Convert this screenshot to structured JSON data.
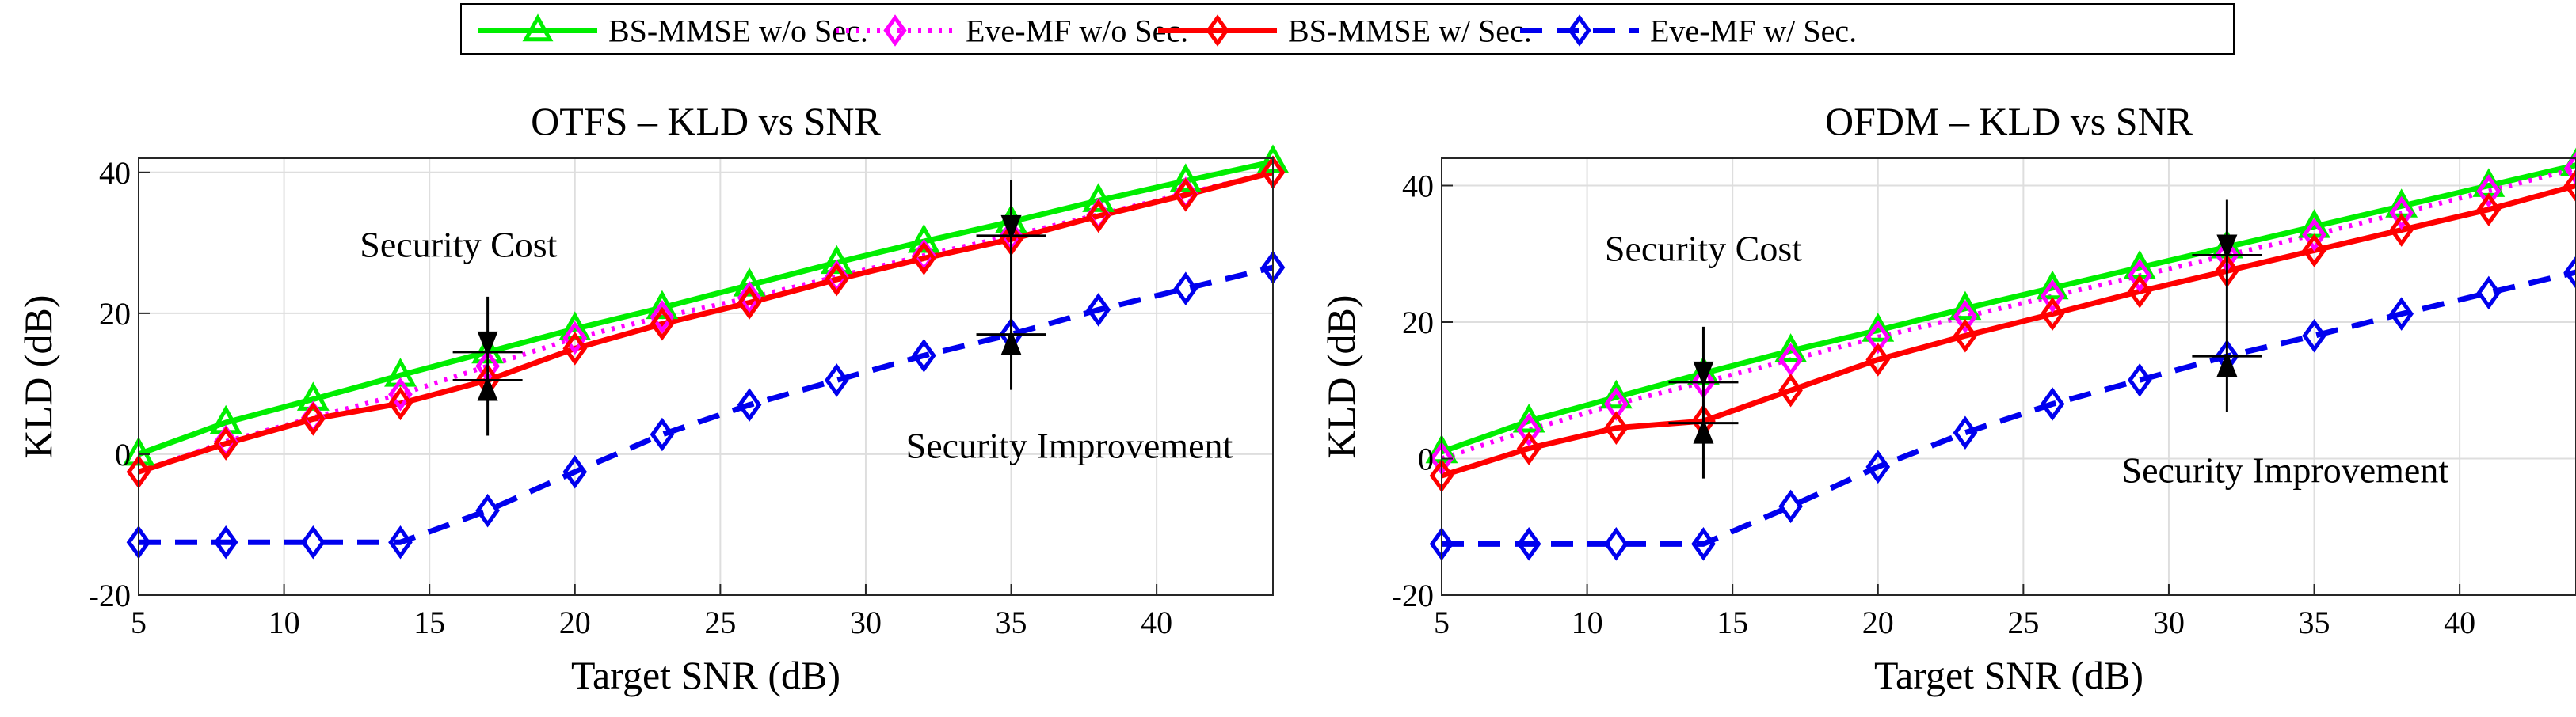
{
  "legend": {
    "entries": [
      {
        "label": "BS-MMSE  w/o Sec.",
        "color": "#00ee00",
        "marker": "triangle",
        "dash": "solid"
      },
      {
        "label": "Eve-MF   w/o Sec.",
        "color": "#ff00ff",
        "marker": "diamond",
        "dash": "dotted"
      },
      {
        "label": "BS-MMSE  w/ Sec.",
        "color": "#ff0000",
        "marker": "diamond",
        "dash": "solid"
      },
      {
        "label": "Eve-MF   w/ Sec.",
        "color": "#0000ee",
        "marker": "diamond",
        "dash": "dashed"
      }
    ]
  },
  "chart_data": [
    {
      "type": "line",
      "title": "OTFS – KLD vs SNR",
      "xlabel": "Target SNR (dB)",
      "ylabel": "KLD (dB)",
      "xlim": [
        5,
        44
      ],
      "ylim": [
        -20,
        42
      ],
      "xticks": [
        5,
        10,
        15,
        20,
        25,
        30,
        35,
        40
      ],
      "yticks": [
        -20,
        0,
        20,
        40
      ],
      "grid": true,
      "x": [
        5,
        8,
        11,
        14,
        17,
        20,
        23,
        26,
        29,
        32,
        35,
        38,
        41,
        44
      ],
      "series": [
        {
          "name": "BS-MMSE  w/o Sec.",
          "values": [
            0,
            4.5,
            7.8,
            11.2,
            14.5,
            17.8,
            20.8,
            24,
            27.2,
            30.2,
            33,
            36,
            38.8,
            41.5
          ]
        },
        {
          "name": "Eve-MF   w/o Sec.",
          "values": [
            -2.5,
            1.8,
            5.2,
            8.5,
            12.5,
            16.5,
            19.5,
            22.2,
            25.2,
            28.2,
            31,
            34,
            37,
            40
          ]
        },
        {
          "name": "BS-MMSE  w/ Sec.",
          "values": [
            -2.5,
            1.5,
            5,
            7.2,
            10.5,
            15,
            18.5,
            21.5,
            24.8,
            27.8,
            30.5,
            33.8,
            36.8,
            40
          ]
        },
        {
          "name": "Eve-MF   w/ Sec.",
          "values": [
            -12.5,
            -12.5,
            -12.5,
            -12.5,
            -8,
            -2.5,
            2.8,
            7,
            10.5,
            14,
            17,
            20.5,
            23.5,
            26.5
          ]
        }
      ],
      "annotations": [
        {
          "text": "Security Cost",
          "x": 16,
          "y": 28
        },
        {
          "text": "Security Improvement",
          "x": 37,
          "y": -0.5
        }
      ],
      "arrows": [
        {
          "x": 17,
          "from": 14.5,
          "to": 10.5
        },
        {
          "x": 35,
          "from": 31,
          "to": 17
        }
      ]
    },
    {
      "type": "line",
      "title": "OFDM – KLD vs SNR",
      "xlabel": "Target SNR (dB)",
      "ylabel": "KLD (dB)",
      "xlim": [
        5,
        44
      ],
      "ylim": [
        -20,
        44
      ],
      "xticks": [
        5,
        10,
        15,
        20,
        25,
        30,
        35,
        40
      ],
      "yticks": [
        -20,
        0,
        20,
        40
      ],
      "grid": true,
      "x": [
        5,
        8,
        11,
        14,
        17,
        20,
        23,
        26,
        29,
        32,
        35,
        38,
        41,
        44
      ],
      "series": [
        {
          "name": "BS-MMSE  w/o Sec.",
          "values": [
            1,
            5.5,
            9,
            12.5,
            15.8,
            18.8,
            22,
            25,
            28,
            31,
            34,
            37,
            40,
            43
          ]
        },
        {
          "name": "Eve-MF   w/o Sec.",
          "values": [
            0,
            4.2,
            8,
            11.2,
            14.5,
            17.8,
            20.8,
            23.8,
            26.8,
            29.8,
            32.8,
            36,
            39.2,
            42.5
          ]
        },
        {
          "name": "BS-MMSE  w/ Sec.",
          "values": [
            -2.5,
            1.5,
            4.5,
            5.5,
            10,
            14.5,
            18,
            21.2,
            24.5,
            27.5,
            30.5,
            33.5,
            36.5,
            40
          ]
        },
        {
          "name": "Eve-MF   w/ Sec.",
          "values": [
            -12.5,
            -12.5,
            -12.5,
            -12.5,
            -7,
            -1.2,
            3.8,
            8,
            11.5,
            15,
            18,
            21.2,
            24.3,
            27.3
          ]
        }
      ],
      "annotations": [
        {
          "text": "Security Cost",
          "x": 14,
          "y": 29
        },
        {
          "text": "Security Improvement",
          "x": 34,
          "y": -3.5
        }
      ],
      "arrows": [
        {
          "x": 14,
          "from": 11.2,
          "to": 5.2
        },
        {
          "x": 32,
          "from": 29.8,
          "to": 15
        }
      ]
    }
  ]
}
